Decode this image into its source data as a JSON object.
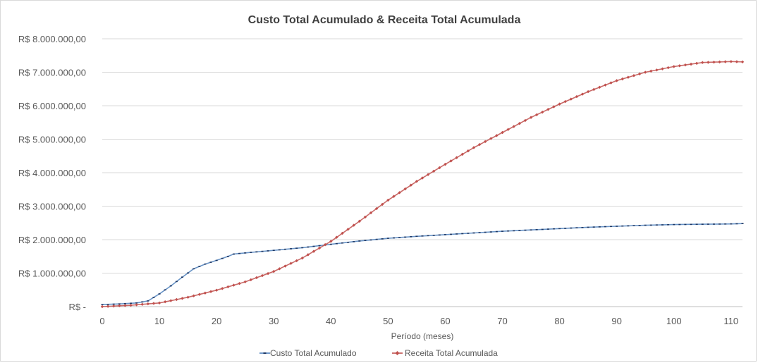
{
  "chart_data": {
    "type": "line",
    "title": "Custo Total Acumulado &  Receita Total Acumulada",
    "xlabel": "Período (meses)",
    "ylabel": "",
    "xlim": [
      0,
      112
    ],
    "ylim": [
      0,
      8000000
    ],
    "x_ticks": [
      0,
      10,
      20,
      30,
      40,
      50,
      60,
      70,
      80,
      90,
      100,
      110
    ],
    "y_ticks": [
      {
        "value": 0,
        "label": "R$ -"
      },
      {
        "value": 1000000,
        "label": "R$ 1.000.000,00"
      },
      {
        "value": 2000000,
        "label": "R$ 2.000.000,00"
      },
      {
        "value": 3000000,
        "label": "R$ 3.000.000,00"
      },
      {
        "value": 4000000,
        "label": "R$ 4.000.000,00"
      },
      {
        "value": 5000000,
        "label": "R$ 5.000.000,00"
      },
      {
        "value": 6000000,
        "label": "R$ 6.000.000,00"
      },
      {
        "value": 7000000,
        "label": "R$ 7.000.000,00"
      },
      {
        "value": 8000000,
        "label": "R$ 8.000.000,00"
      }
    ],
    "grid": "horizontal",
    "legend_position": "bottom",
    "series": [
      {
        "name": "Custo Total Acumulado",
        "color": "#4f81bd",
        "marker": "dash",
        "points": [
          [
            0,
            60000
          ],
          [
            3,
            80000
          ],
          [
            6,
            110000
          ],
          [
            8,
            170000
          ],
          [
            10,
            380000
          ],
          [
            12,
            620000
          ],
          [
            14,
            880000
          ],
          [
            16,
            1130000
          ],
          [
            18,
            1270000
          ],
          [
            20,
            1380000
          ],
          [
            22,
            1500000
          ],
          [
            23,
            1570000
          ],
          [
            26,
            1620000
          ],
          [
            30,
            1680000
          ],
          [
            35,
            1760000
          ],
          [
            40,
            1860000
          ],
          [
            45,
            1960000
          ],
          [
            50,
            2040000
          ],
          [
            55,
            2100000
          ],
          [
            60,
            2150000
          ],
          [
            65,
            2200000
          ],
          [
            70,
            2250000
          ],
          [
            75,
            2290000
          ],
          [
            80,
            2330000
          ],
          [
            85,
            2370000
          ],
          [
            90,
            2400000
          ],
          [
            95,
            2430000
          ],
          [
            100,
            2450000
          ],
          [
            105,
            2460000
          ],
          [
            110,
            2470000
          ],
          [
            112,
            2480000
          ]
        ]
      },
      {
        "name": "Receita Total Acumulada",
        "color": "#c0504d",
        "marker": "diamond",
        "points": [
          [
            0,
            0
          ],
          [
            5,
            40000
          ],
          [
            10,
            110000
          ],
          [
            15,
            280000
          ],
          [
            20,
            490000
          ],
          [
            25,
            740000
          ],
          [
            30,
            1050000
          ],
          [
            35,
            1450000
          ],
          [
            40,
            1950000
          ],
          [
            45,
            2550000
          ],
          [
            50,
            3180000
          ],
          [
            55,
            3740000
          ],
          [
            60,
            4250000
          ],
          [
            65,
            4750000
          ],
          [
            70,
            5200000
          ],
          [
            75,
            5650000
          ],
          [
            80,
            6050000
          ],
          [
            85,
            6420000
          ],
          [
            90,
            6750000
          ],
          [
            95,
            7000000
          ],
          [
            100,
            7170000
          ],
          [
            105,
            7290000
          ],
          [
            110,
            7320000
          ],
          [
            112,
            7310000
          ]
        ]
      }
    ]
  }
}
